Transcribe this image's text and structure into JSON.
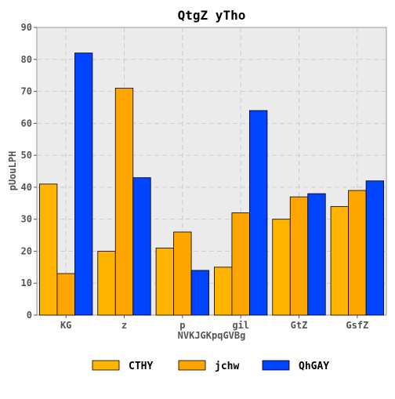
{
  "chart_data": {
    "type": "bar",
    "title": "QtgZ  yTho",
    "xlabel": "NVKJGKpqGVBg",
    "ylabel": "pUouLPH",
    "categories": [
      "KG",
      "z",
      "p",
      "gil",
      "GtZ",
      "GsfZ"
    ],
    "series": [
      {
        "name": "CTHY",
        "values": [
          41,
          20,
          21,
          15,
          30,
          34
        ],
        "color": "#FFB400"
      },
      {
        "name": "jchw",
        "values": [
          13,
          71,
          26,
          32,
          37,
          39
        ],
        "color": "#FFA500"
      },
      {
        "name": "QhGAY",
        "values": [
          82,
          43,
          14,
          64,
          38,
          42
        ],
        "color": "#0044FF"
      }
    ],
    "ylim": [
      0,
      90
    ],
    "yticks": [
      0,
      10,
      20,
      30,
      40,
      50,
      60,
      70,
      80,
      90
    ],
    "grid": true,
    "legend_position": "bottom"
  }
}
